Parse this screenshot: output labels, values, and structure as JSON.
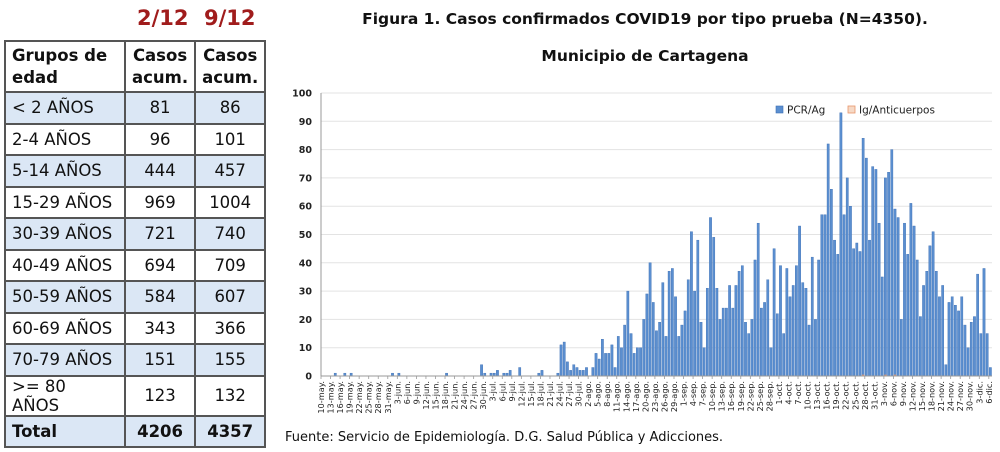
{
  "table": {
    "date_headers": [
      "2/12",
      "9/12"
    ],
    "header": [
      "Grupos de edad",
      "Casos acum.",
      "Casos acum."
    ],
    "rows": [
      [
        "< 2 AÑOS",
        "81",
        "86"
      ],
      [
        "2-4 AÑOS",
        "96",
        "101"
      ],
      [
        "5-14 AÑOS",
        "444",
        "457"
      ],
      [
        "15-29 AÑOS",
        "969",
        "1004"
      ],
      [
        "30-39 AÑOS",
        "721",
        "740"
      ],
      [
        "40-49 AÑOS",
        "694",
        "709"
      ],
      [
        "50-59 AÑOS",
        "584",
        "607"
      ],
      [
        "60-69 AÑOS",
        "343",
        "366"
      ],
      [
        "70-79 AÑOS",
        "151",
        "155"
      ],
      [
        ">= 80 AÑOS",
        "123",
        "132"
      ]
    ],
    "total": [
      "Total",
      "4206",
      "4357"
    ],
    "colors": {
      "date_header": "#a01c1c",
      "shade": "#dbe7f5"
    }
  },
  "source": "Fuente: Servicio de Epidemiología. D.G. Salud Pública y Adicciones.",
  "chart_data": {
    "type": "bar",
    "title": "Figura 1. Casos confirmados COVID19 por tipo prueba (N=4350).",
    "subtitle": "Municipio de Cartagena",
    "xlabel": "",
    "ylabel": "",
    "ylim": [
      0,
      100
    ],
    "yticks": [
      0,
      10,
      20,
      30,
      40,
      50,
      60,
      70,
      80,
      90,
      100
    ],
    "grid": true,
    "legend_position": "top-right",
    "first_date": "10-may.",
    "tick_labels": [
      "10-may.",
      "13-may.",
      "16-may.",
      "19-may.",
      "22-may.",
      "25-may.",
      "28-may.",
      "31-may.",
      "3-jun.",
      "6-jun.",
      "9-jun.",
      "12-jun.",
      "15-jun.",
      "18-jun.",
      "21-jun.",
      "24-jun.",
      "27-jun.",
      "30-jun.",
      "3-jul.",
      "6-jul.",
      "9-jul.",
      "12-jul.",
      "15-jul.",
      "18-jul.",
      "21-jul.",
      "24-jul.",
      "27-jul.",
      "30-jul.",
      "2-ago.",
      "5-ago.",
      "8-ago.",
      "11-ago.",
      "14-ago.",
      "17-ago.",
      "20-ago.",
      "23-ago.",
      "26-ago.",
      "29-ago.",
      "1-sep.",
      "4-sep.",
      "7-sep.",
      "10-sep.",
      "13-sep.",
      "16-sep.",
      "19-sep.",
      "22-sep.",
      "25-sep.",
      "28-sep.",
      "1-oct.",
      "4-oct.",
      "7-oct.",
      "10-oct.",
      "13-oct.",
      "16-oct.",
      "19-oct.",
      "22-oct.",
      "25-oct.",
      "28-oct.",
      "31-oct.",
      "3-nov.",
      "6-nov.",
      "9-nov.",
      "12-nov.",
      "15-nov.",
      "18-nov.",
      "21-nov.",
      "24-nov.",
      "27-nov.",
      "30-nov.",
      "3-dic.",
      "6-dic."
    ],
    "series": [
      {
        "name": "PCR/Ag",
        "color": "#5b8fd0",
        "values": [
          0,
          0,
          0,
          0,
          1,
          0,
          0,
          1,
          0,
          1,
          0,
          0,
          0,
          0,
          0,
          0,
          0,
          0,
          0,
          0,
          0,
          0,
          1,
          0,
          1,
          0,
          0,
          0,
          0,
          0,
          0,
          0,
          0,
          0,
          0,
          0,
          0,
          0,
          0,
          1,
          0,
          0,
          0,
          0,
          0,
          0,
          0,
          0,
          0,
          0,
          4,
          1,
          0,
          1,
          1,
          2,
          0,
          1,
          1,
          2,
          0,
          0,
          3,
          0,
          0,
          0,
          0,
          0,
          1,
          2,
          0,
          0,
          0,
          0,
          1,
          11,
          12,
          5,
          2,
          4,
          3,
          2,
          2,
          3,
          0,
          3,
          8,
          6,
          13,
          8,
          8,
          11,
          3,
          14,
          10,
          18,
          30,
          15,
          8,
          10,
          10,
          20,
          29,
          40,
          26,
          16,
          19,
          33,
          14,
          37,
          38,
          28,
          14,
          18,
          23,
          34,
          51,
          30,
          48,
          19,
          10,
          31,
          56,
          49,
          31,
          20,
          24,
          24,
          32,
          24,
          32,
          37,
          39,
          19,
          15,
          20,
          41,
          54,
          24,
          26,
          34,
          10,
          45,
          22,
          39,
          15,
          38,
          28,
          32,
          39,
          53,
          33,
          31,
          18,
          42,
          20,
          41,
          57,
          57,
          82,
          66,
          48,
          43,
          93,
          57,
          70,
          60,
          45,
          47,
          44,
          84,
          77,
          48,
          74,
          73,
          54,
          35,
          70,
          72,
          80,
          59,
          56,
          20,
          54,
          43,
          61,
          53,
          41,
          21,
          32,
          37,
          46,
          51,
          37,
          28,
          32,
          4,
          26,
          28,
          25,
          23,
          28,
          18,
          10,
          19,
          21,
          36,
          15,
          38,
          15,
          3
        ]
      },
      {
        "name": "Ig/Anticuerpos",
        "color": "#e8956a",
        "points": [
          {
            "day_index": 170,
            "value": 1
          },
          {
            "day_index": 177,
            "value": 1
          },
          {
            "day_index": 180,
            "value": 1
          }
        ]
      }
    ]
  }
}
